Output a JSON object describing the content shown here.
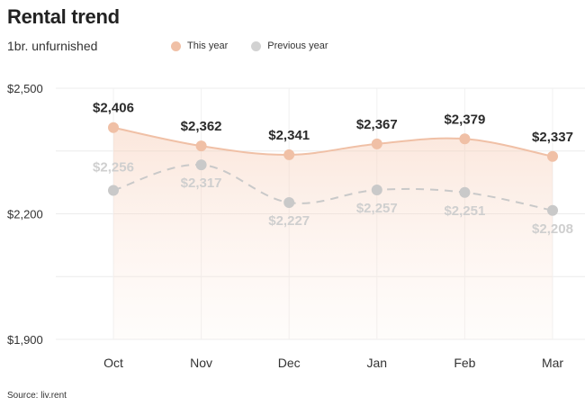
{
  "header": {
    "title": "Rental trend",
    "subtitle": "1br. unfurnished"
  },
  "legend": [
    {
      "label": "This year",
      "color": "#f0c0a6"
    },
    {
      "label": "Previous year",
      "color": "#d2d2d2"
    }
  ],
  "source": "Source: liv.rent",
  "chart_data": {
    "type": "line",
    "title": "Rental trend",
    "subtitle": "1br. unfurnished",
    "categories": [
      "Oct",
      "Nov",
      "Dec",
      "Jan",
      "Feb",
      "Mar"
    ],
    "series": [
      {
        "name": "This year",
        "values": [
          2406,
          2362,
          2341,
          2367,
          2379,
          2337
        ],
        "labels": [
          "$2,406",
          "$2,362",
          "$2,341",
          "$2,367",
          "$2,379",
          "$2,337"
        ],
        "color": "#f0c0a6",
        "style": "solid",
        "area": true
      },
      {
        "name": "Previous year",
        "values": [
          2256,
          2317,
          2227,
          2257,
          2251,
          2208
        ],
        "labels": [
          "$2,256",
          "$2,317",
          "$2,227",
          "$2,257",
          "$2,251",
          "$2,208"
        ],
        "color": "#c9c9c9",
        "style": "dashed",
        "area": false
      }
    ],
    "y_ticks": [
      1900,
      2200,
      2500
    ],
    "y_tick_labels": [
      "$1,900",
      "$2,200",
      "$2,500"
    ],
    "ylim": [
      1900,
      2500
    ],
    "grid": true,
    "legend_position": "top"
  }
}
